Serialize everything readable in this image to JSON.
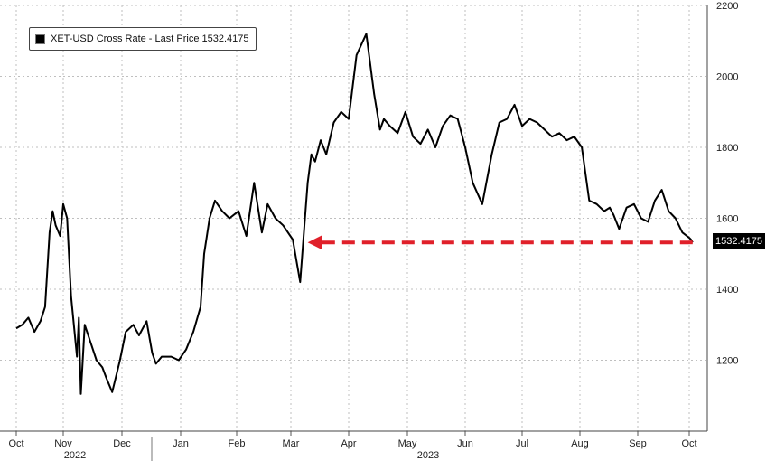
{
  "legend": {
    "label": "XET-USD Cross Rate - Last Price 1532.4175"
  },
  "last_price_tag": "1532.4175",
  "colors": {
    "series": "#000000",
    "arrow": "#e0202a",
    "grid": "#bfbfbf",
    "background": "#ffffff"
  },
  "chart_data": {
    "type": "line",
    "title": "",
    "xlabel": "",
    "ylabel": "",
    "ylim": [
      1000,
      2200
    ],
    "y_ticks": [
      "1200",
      "1400",
      "1600",
      "1800",
      "2000",
      "2200"
    ],
    "y_axis_side": "right",
    "grid": true,
    "legend_placement": "top-left",
    "x_tick_labels": [
      "Oct",
      "Nov",
      "Dec",
      "Jan",
      "Feb",
      "Mar",
      "Apr",
      "May",
      "Jun",
      "Jul",
      "Aug",
      "Sep",
      "Oct"
    ],
    "x_year_labels": [
      "2022",
      "2023"
    ],
    "series": [
      {
        "name": "XET-USD Cross Rate - Last Price",
        "x": [
          "2022-10-01",
          "2022-10-05",
          "2022-10-09",
          "2022-10-13",
          "2022-10-17",
          "2022-10-20",
          "2022-10-23",
          "2022-10-25",
          "2022-10-27",
          "2022-10-30",
          "2022-11-01",
          "2022-11-03",
          "2022-11-05",
          "2022-11-08",
          "2022-11-09",
          "2022-11-10",
          "2022-11-12",
          "2022-11-15",
          "2022-11-18",
          "2022-11-21",
          "2022-11-23",
          "2022-11-26",
          "2022-11-30",
          "2022-12-03",
          "2022-12-07",
          "2022-12-10",
          "2022-12-14",
          "2022-12-17",
          "2022-12-19",
          "2022-12-22",
          "2022-12-27",
          "2022-12-31",
          "2023-01-04",
          "2023-01-08",
          "2023-01-12",
          "2023-01-14",
          "2023-01-17",
          "2023-01-20",
          "2023-01-24",
          "2023-01-28",
          "2023-02-02",
          "2023-02-06",
          "2023-02-10",
          "2023-02-14",
          "2023-02-17",
          "2023-02-21",
          "2023-02-25",
          "2023-03-02",
          "2023-03-06",
          "2023-03-09",
          "2023-03-10",
          "2023-03-12",
          "2023-03-14",
          "2023-03-17",
          "2023-03-20",
          "2023-03-24",
          "2023-03-28",
          "2023-04-01",
          "2023-04-05",
          "2023-04-10",
          "2023-04-14",
          "2023-04-17",
          "2023-04-19",
          "2023-04-22",
          "2023-04-26",
          "2023-04-30",
          "2023-05-04",
          "2023-05-08",
          "2023-05-12",
          "2023-05-16",
          "2023-05-20",
          "2023-05-24",
          "2023-05-28",
          "2023-06-01",
          "2023-06-05",
          "2023-06-10",
          "2023-06-15",
          "2023-06-19",
          "2023-06-23",
          "2023-06-27",
          "2023-07-01",
          "2023-07-05",
          "2023-07-09",
          "2023-07-13",
          "2023-07-17",
          "2023-07-21",
          "2023-07-25",
          "2023-07-29",
          "2023-08-02",
          "2023-08-06",
          "2023-08-10",
          "2023-08-14",
          "2023-08-17",
          "2023-08-19",
          "2023-08-22",
          "2023-08-26",
          "2023-08-30",
          "2023-09-03",
          "2023-09-07",
          "2023-09-11",
          "2023-09-15",
          "2023-09-19",
          "2023-09-23",
          "2023-09-27",
          "2023-10-01",
          "2023-10-02",
          "2023-10-03"
        ],
        "values": [
          1290,
          1300,
          1320,
          1280,
          1310,
          1350,
          1560,
          1620,
          1580,
          1550,
          1640,
          1600,
          1380,
          1210,
          1320,
          1105,
          1300,
          1250,
          1200,
          1180,
          1150,
          1110,
          1200,
          1280,
          1300,
          1270,
          1310,
          1220,
          1190,
          1210,
          1210,
          1200,
          1230,
          1280,
          1350,
          1500,
          1600,
          1650,
          1620,
          1600,
          1620,
          1550,
          1700,
          1560,
          1640,
          1600,
          1580,
          1540,
          1420,
          1630,
          1700,
          1780,
          1760,
          1820,
          1780,
          1870,
          1900,
          1880,
          2060,
          2120,
          1950,
          1850,
          1880,
          1860,
          1840,
          1900,
          1830,
          1810,
          1850,
          1800,
          1860,
          1890,
          1880,
          1800,
          1700,
          1640,
          1780,
          1870,
          1880,
          1920,
          1860,
          1880,
          1870,
          1850,
          1830,
          1840,
          1820,
          1830,
          1800,
          1650,
          1640,
          1620,
          1630,
          1610,
          1570,
          1630,
          1640,
          1600,
          1590,
          1650,
          1680,
          1620,
          1600,
          1560,
          1545,
          1540,
          1532
        ]
      }
    ],
    "annotations": [
      {
        "type": "arrow",
        "label": "",
        "y": 1532,
        "from_x": "2023-10-03",
        "to_x": "2023-03-10",
        "style": "dashed"
      }
    ]
  }
}
